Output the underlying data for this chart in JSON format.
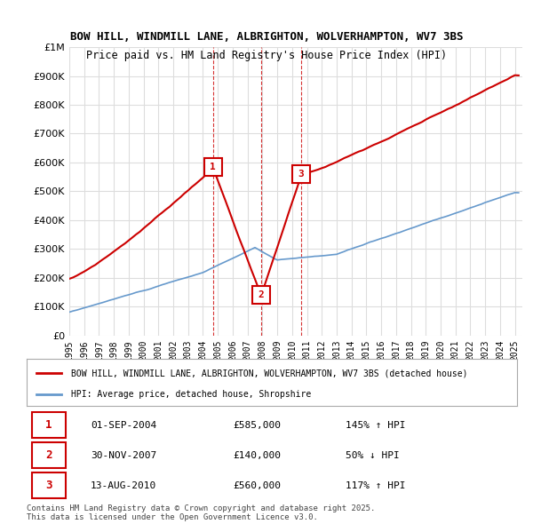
{
  "title_line1": "BOW HILL, WINDMILL LANE, ALBRIGHTON, WOLVERHAMPTON, WV7 3BS",
  "title_line2": "Price paid vs. HM Land Registry's House Price Index (HPI)",
  "legend_label1": "BOW HILL, WINDMILL LANE, ALBRIGHTON, WOLVERHAMPTON, WV7 3BS (detached house)",
  "legend_label2": "HPI: Average price, detached house, Shropshire",
  "transactions": [
    {
      "num": 1,
      "date": "01-SEP-2004",
      "year": 2004.67,
      "price": 585000,
      "pct": "145%",
      "dir": "↑"
    },
    {
      "num": 2,
      "date": "30-NOV-2007",
      "year": 2007.92,
      "price": 140000,
      "pct": "50%",
      "dir": "↓"
    },
    {
      "num": 3,
      "date": "13-AUG-2010",
      "year": 2010.62,
      "price": 560000,
      "pct": "117%",
      "dir": "↑"
    }
  ],
  "red_line_color": "#cc0000",
  "blue_line_color": "#6699cc",
  "dashed_line_color": "#cc0000",
  "grid_color": "#dddddd",
  "background_color": "#ffffff",
  "ylim": [
    0,
    1000000
  ],
  "xlim_start": 1995,
  "xlim_end": 2025.5,
  "footer_text": "Contains HM Land Registry data © Crown copyright and database right 2025.\nThis data is licensed under the Open Government Licence v3.0.",
  "hpi_base_value": 100000,
  "hpi_start_year": 1995
}
